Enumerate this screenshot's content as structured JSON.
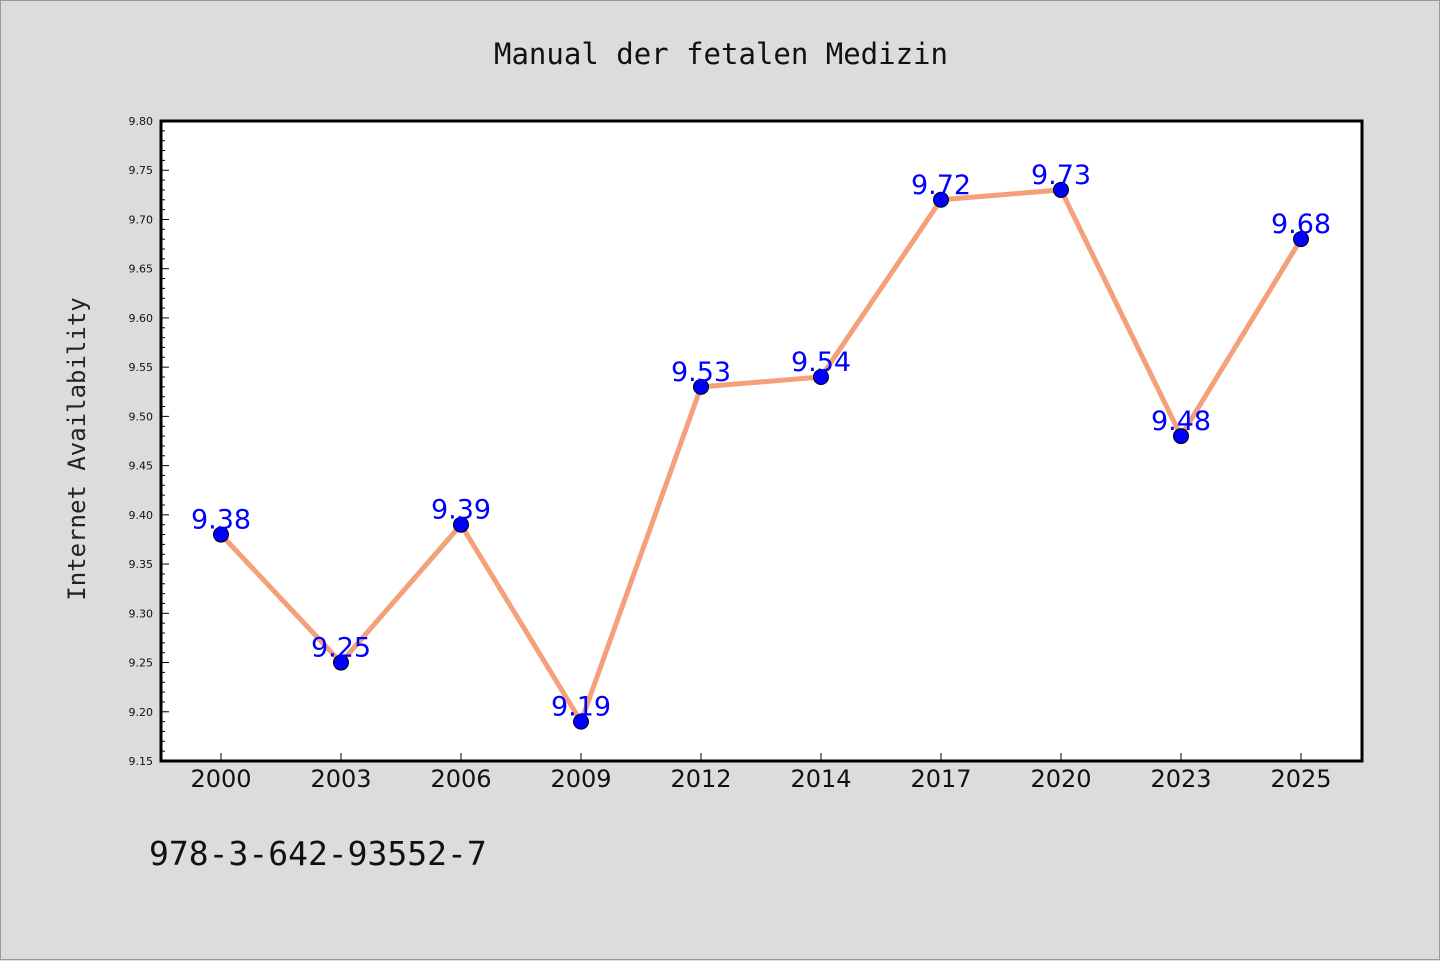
{
  "chart_data": {
    "type": "line",
    "title": "Manual der fetalen Medizin",
    "ylabel": "Internet Availability",
    "xlabel": "",
    "categories": [
      "2000",
      "2003",
      "2006",
      "2009",
      "2012",
      "2014",
      "2017",
      "2020",
      "2023",
      "2025"
    ],
    "values": [
      9.38,
      9.25,
      9.39,
      9.19,
      9.53,
      9.54,
      9.72,
      9.73,
      9.48,
      9.68
    ],
    "data_labels": [
      "9.38",
      "9.25",
      "9.39",
      "9.19",
      "9.53",
      "9.54",
      "9.72",
      "9.73",
      "9.48",
      "9.68"
    ],
    "ylim": [
      9.15,
      9.8
    ],
    "yticks": [
      "9.15",
      "9.20",
      "9.25",
      "9.30",
      "9.35",
      "9.40",
      "9.45",
      "9.50",
      "9.55",
      "9.60",
      "9.65",
      "9.70",
      "9.75",
      "9.80"
    ],
    "grid": false,
    "line_color": "#f4a07a",
    "marker_color": "#0000ff"
  },
  "footer": {
    "isbn": "978-3-642-93552-7"
  }
}
